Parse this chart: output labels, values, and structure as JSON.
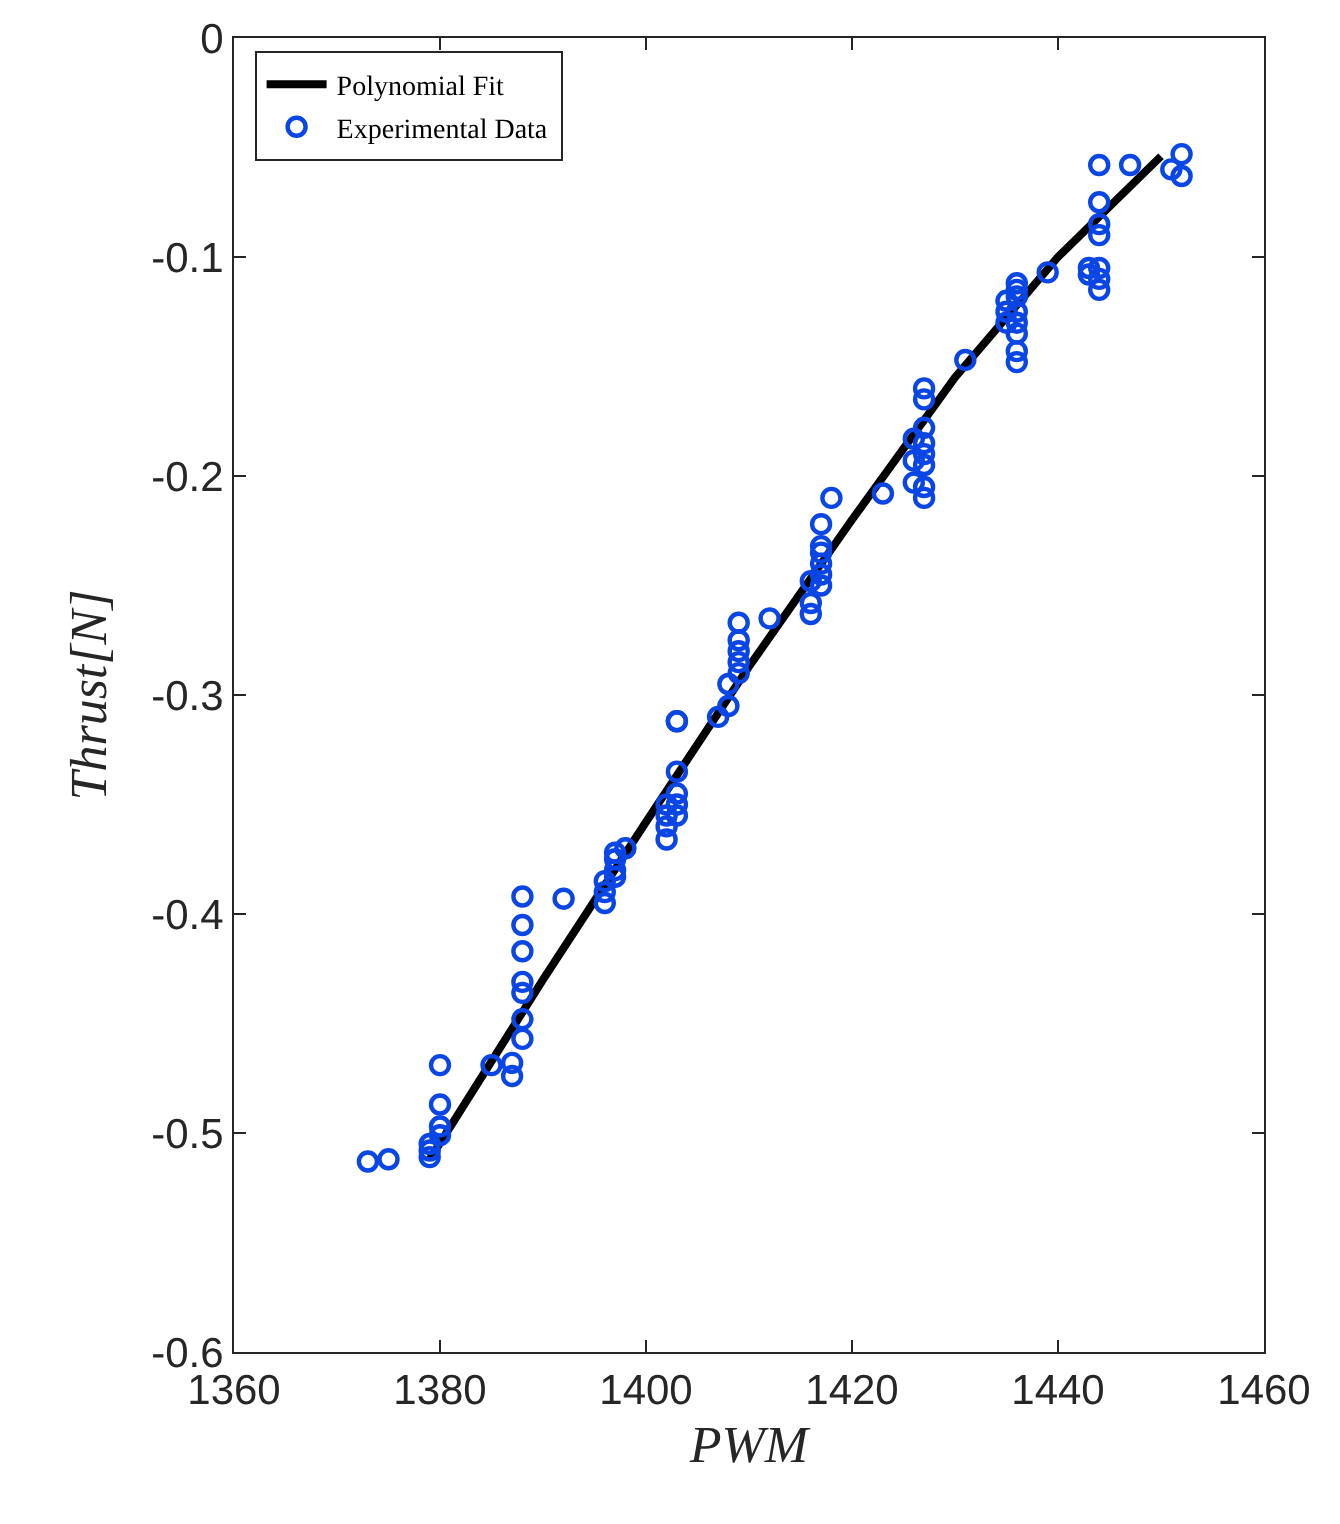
{
  "chart_data": {
    "type": "scatter",
    "xlabel": "PWM",
    "ylabel": "Thrust[N]",
    "xlim": [
      1360,
      1460
    ],
    "xticks": [
      1360,
      1380,
      1400,
      1420,
      1440,
      1460
    ],
    "ylim": [
      -0.6,
      0
    ],
    "yticks": [
      -0.6,
      -0.5,
      -0.4,
      -0.3,
      -0.2,
      -0.1,
      0
    ],
    "grid": false,
    "legend": "top left",
    "series": [
      {
        "name": "Polynomial Fit",
        "type": "line",
        "color": "#000000",
        "marker": "none",
        "line_style": "solid",
        "x": [
          1379,
          1390,
          1400,
          1410,
          1420,
          1430,
          1440,
          1450
        ],
        "values": [
          -0.512,
          -0.43,
          -0.358,
          -0.287,
          -0.22,
          -0.155,
          -0.1,
          -0.054
        ]
      },
      {
        "name": "Experimental Data",
        "color": "#0a46e6",
        "marker": "circle",
        "x": [
          1373,
          1375,
          1379,
          1379,
          1379,
          1380,
          1380,
          1380,
          1380,
          1385,
          1387,
          1387,
          1388,
          1388,
          1388,
          1388,
          1388,
          1388,
          1388,
          1392,
          1396,
          1396,
          1396,
          1397,
          1397,
          1397,
          1397,
          1398,
          1402,
          1402,
          1402,
          1402,
          1403,
          1403,
          1403,
          1403,
          1403,
          1403,
          1407,
          1408,
          1408,
          1409,
          1409,
          1409,
          1409,
          1409,
          1412,
          1416,
          1416,
          1416,
          1417,
          1417,
          1417,
          1417,
          1417,
          1417,
          1418,
          1423,
          1426,
          1426,
          1426,
          1427,
          1427,
          1427,
          1427,
          1427,
          1427,
          1427,
          1427,
          1431,
          1435,
          1435,
          1435,
          1436,
          1436,
          1436,
          1436,
          1436,
          1436,
          1436,
          1436,
          1439,
          1443,
          1443,
          1444,
          1444,
          1444,
          1444,
          1444,
          1444,
          1444,
          1447,
          1451,
          1452,
          1452
        ],
        "values": [
          -0.513,
          -0.512,
          -0.511,
          -0.508,
          -0.505,
          -0.501,
          -0.497,
          -0.487,
          -0.469,
          -0.469,
          -0.474,
          -0.468,
          -0.457,
          -0.448,
          -0.436,
          -0.431,
          -0.417,
          -0.405,
          -0.392,
          -0.393,
          -0.385,
          -0.39,
          -0.395,
          -0.372,
          -0.375,
          -0.38,
          -0.383,
          -0.37,
          -0.35,
          -0.355,
          -0.36,
          -0.366,
          -0.312,
          -0.312,
          -0.335,
          -0.345,
          -0.35,
          -0.355,
          -0.31,
          -0.305,
          -0.295,
          -0.29,
          -0.285,
          -0.28,
          -0.275,
          -0.267,
          -0.265,
          -0.263,
          -0.258,
          -0.248,
          -0.25,
          -0.245,
          -0.24,
          -0.235,
          -0.232,
          -0.222,
          -0.21,
          -0.208,
          -0.203,
          -0.193,
          -0.183,
          -0.21,
          -0.205,
          -0.195,
          -0.19,
          -0.185,
          -0.178,
          -0.165,
          -0.16,
          -0.147,
          -0.13,
          -0.125,
          -0.12,
          -0.148,
          -0.143,
          -0.135,
          -0.13,
          -0.125,
          -0.118,
          -0.115,
          -0.112,
          -0.107,
          -0.105,
          -0.108,
          -0.115,
          -0.11,
          -0.105,
          -0.09,
          -0.085,
          -0.075,
          -0.058,
          -0.058,
          -0.06,
          -0.053,
          -0.063
        ]
      }
    ]
  }
}
